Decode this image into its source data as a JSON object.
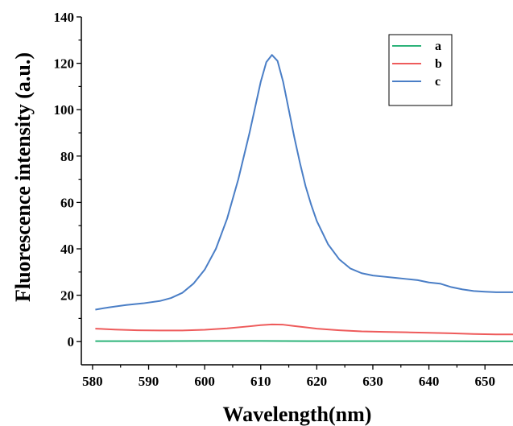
{
  "chart_data": {
    "type": "line",
    "xlabel": "Wavelength(nm)",
    "ylabel": "Fluorescence intensity (a.u.)",
    "xlim": [
      578,
      655
    ],
    "ylim": [
      -10,
      140
    ],
    "xticks": [
      580,
      590,
      600,
      610,
      620,
      630,
      640,
      650
    ],
    "yticks": [
      0,
      20,
      40,
      60,
      80,
      100,
      120,
      140
    ],
    "grid": false,
    "legend_position": "top-right",
    "series": [
      {
        "name": "a",
        "color": "#2db37a",
        "x": [
          580.5,
          590,
          600,
          610,
          620,
          630,
          640,
          650,
          655
        ],
        "y": [
          0.2,
          0.2,
          0.3,
          0.3,
          0.2,
          0.2,
          0.2,
          0.1,
          0.1
        ]
      },
      {
        "name": "b",
        "color": "#ee5b5b",
        "x": [
          580.5,
          584,
          588,
          592,
          596,
          600,
          604,
          608,
          610,
          612,
          614,
          616,
          620,
          624,
          628,
          632,
          636,
          640,
          644,
          648,
          652,
          655
        ],
        "y": [
          5.6,
          5.2,
          4.9,
          4.8,
          4.8,
          5.1,
          5.7,
          6.6,
          7.1,
          7.4,
          7.3,
          6.7,
          5.6,
          4.9,
          4.4,
          4.2,
          4.0,
          3.8,
          3.6,
          3.3,
          3.1,
          3.1
        ]
      },
      {
        "name": "c",
        "color": "#4a7ec6",
        "x": [
          580.5,
          583,
          586,
          589,
          592,
          594,
          596,
          598,
          600,
          602,
          604,
          606,
          608,
          609,
          610,
          611,
          612,
          613,
          614,
          615,
          616,
          617,
          618,
          619,
          620,
          622,
          624,
          626,
          628,
          630,
          632,
          634,
          636,
          638,
          640,
          642,
          644,
          646,
          648,
          650,
          652,
          655
        ],
        "y": [
          13.8,
          14.8,
          15.8,
          16.5,
          17.5,
          18.8,
          21.0,
          25.0,
          31.0,
          40.0,
          53.0,
          70.0,
          90.0,
          101.0,
          112.0,
          120.5,
          123.6,
          121.0,
          112.0,
          100.0,
          88.0,
          77.0,
          67.0,
          59.0,
          52.0,
          42.0,
          35.5,
          31.5,
          29.5,
          28.5,
          28.0,
          27.5,
          27.0,
          26.5,
          25.5,
          25.0,
          23.5,
          22.5,
          21.8,
          21.5,
          21.3,
          21.3
        ]
      }
    ]
  }
}
